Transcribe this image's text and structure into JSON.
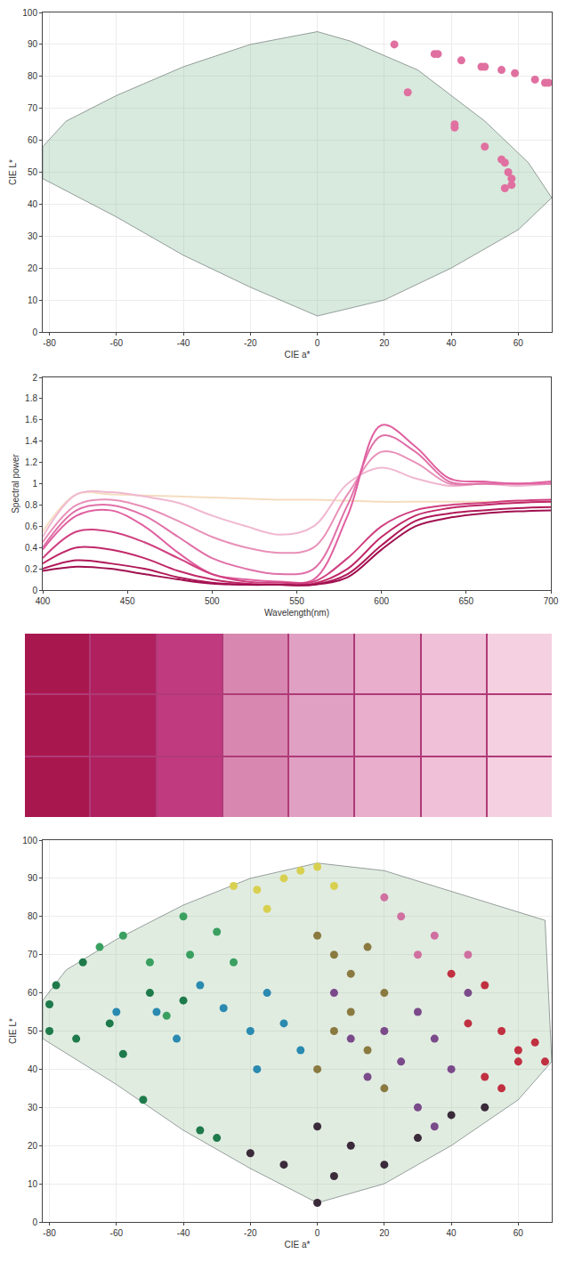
{
  "chart_data": [
    {
      "type": "scatter",
      "xlabel": "CIE a*",
      "ylabel": "CIE L*",
      "xlim": [
        -82,
        70
      ],
      "ylim": [
        0,
        100
      ],
      "xticks": [
        -80,
        -60,
        -40,
        -20,
        0,
        20,
        40,
        60
      ],
      "yticks": [
        0,
        10,
        20,
        30,
        40,
        50,
        60,
        70,
        80,
        90,
        100
      ],
      "grid": true,
      "series": [
        {
          "type": "area",
          "color": "#8fbf9f",
          "line_style": "solid",
          "x": [
            -82,
            -82,
            -75,
            -60,
            -40,
            -20,
            0,
            10,
            30,
            50,
            63,
            70,
            60,
            40,
            20,
            0,
            -20,
            -40,
            -60,
            -82
          ],
          "values": [
            48,
            58,
            66,
            74,
            83,
            90,
            94,
            91,
            82,
            66,
            53,
            42,
            32,
            20,
            10,
            5,
            14,
            24,
            36,
            48
          ]
        },
        {
          "type": "scatter",
          "color": "#e070a0",
          "marker": "circle",
          "x": [
            23,
            27,
            35,
            36,
            43,
            41,
            41,
            49,
            50,
            50,
            55,
            55,
            56,
            59,
            57,
            58,
            58,
            56,
            65,
            68,
            69
          ],
          "values": [
            90,
            75,
            87,
            87,
            85,
            65,
            64,
            83,
            83,
            58,
            82,
            54,
            53,
            81,
            50,
            48,
            46,
            45,
            79,
            78,
            78
          ]
        }
      ]
    },
    {
      "type": "line",
      "xlabel": "Wavelength(nm)",
      "ylabel": "Spectral power",
      "xlim": [
        400,
        700
      ],
      "ylim": [
        0,
        2
      ],
      "xticks": [
        400,
        450,
        500,
        550,
        600,
        650,
        700
      ],
      "yticks": [
        0,
        0.2,
        0.4,
        0.6,
        0.8,
        1,
        1.2,
        1.4,
        1.6,
        1.8,
        2
      ],
      "grid": false,
      "x": [
        400,
        420,
        440,
        460,
        480,
        500,
        520,
        540,
        560,
        580,
        600,
        620,
        640,
        660,
        680,
        700
      ],
      "series": [
        {
          "color": "#f5dcc0",
          "values": [
            0.55,
            0.9,
            0.9,
            0.89,
            0.88,
            0.87,
            0.86,
            0.85,
            0.85,
            0.84,
            0.83,
            0.83,
            0.83,
            0.83,
            0.83,
            0.83
          ]
        },
        {
          "color": "#f0b8d0",
          "values": [
            0.5,
            0.9,
            0.92,
            0.88,
            0.82,
            0.7,
            0.6,
            0.52,
            0.6,
            1.0,
            1.15,
            1.05,
            0.98,
            1.0,
            0.98,
            1.0
          ]
        },
        {
          "color": "#e890b8",
          "values": [
            0.45,
            0.8,
            0.85,
            0.78,
            0.65,
            0.5,
            0.4,
            0.35,
            0.4,
            0.9,
            1.3,
            1.2,
            1.0,
            1.0,
            1.0,
            1.0
          ]
        },
        {
          "color": "#e070a8",
          "values": [
            0.4,
            0.75,
            0.8,
            0.7,
            0.5,
            0.3,
            0.2,
            0.15,
            0.2,
            0.8,
            1.45,
            1.3,
            1.02,
            1.0,
            1.0,
            1.0
          ]
        },
        {
          "color": "#e060a0",
          "values": [
            0.38,
            0.7,
            0.75,
            0.6,
            0.35,
            0.15,
            0.1,
            0.08,
            0.1,
            0.7,
            1.55,
            1.35,
            1.05,
            1.02,
            1.0,
            1.02
          ]
        },
        {
          "color": "#d04080",
          "values": [
            0.3,
            0.55,
            0.55,
            0.45,
            0.3,
            0.15,
            0.08,
            0.07,
            0.08,
            0.3,
            0.6,
            0.75,
            0.8,
            0.82,
            0.84,
            0.85
          ]
        },
        {
          "color": "#c02868",
          "values": [
            0.25,
            0.4,
            0.38,
            0.3,
            0.18,
            0.1,
            0.06,
            0.05,
            0.06,
            0.2,
            0.5,
            0.7,
            0.77,
            0.8,
            0.82,
            0.83
          ]
        },
        {
          "color": "#b01858",
          "values": [
            0.2,
            0.28,
            0.25,
            0.2,
            0.12,
            0.07,
            0.05,
            0.05,
            0.05,
            0.15,
            0.42,
            0.65,
            0.72,
            0.75,
            0.77,
            0.78
          ]
        },
        {
          "color": "#a01050",
          "values": [
            0.18,
            0.22,
            0.2,
            0.15,
            0.1,
            0.06,
            0.05,
            0.05,
            0.05,
            0.12,
            0.38,
            0.6,
            0.68,
            0.72,
            0.74,
            0.75
          ]
        }
      ]
    },
    {
      "type": "patches",
      "rows": 3,
      "colors": [
        "#a8184e",
        "#b0205e",
        "#c03a80",
        "#d888b0",
        "#e0a0c4",
        "#e8aecc",
        "#f0c0d8",
        "#f5d0e0"
      ]
    },
    {
      "type": "scatter",
      "xlabel": "CIE a*",
      "ylabel": "CIE L*",
      "xlim": [
        -82,
        70
      ],
      "ylim": [
        0,
        100
      ],
      "xticks": [
        -80,
        -60,
        -40,
        -20,
        0,
        20,
        40,
        60
      ],
      "yticks": [
        0,
        10,
        20,
        30,
        40,
        50,
        60,
        70,
        80,
        90,
        100
      ],
      "grid": true,
      "series": [
        {
          "type": "area",
          "color": "#a9c9a9",
          "line_style": "solid",
          "x": [
            -82,
            -82,
            -75,
            -60,
            -40,
            -20,
            0,
            20,
            68,
            70,
            60,
            40,
            20,
            0,
            -20,
            -40,
            -60,
            -82
          ],
          "values": [
            48,
            58,
            66,
            74,
            83,
            90,
            94,
            92,
            79,
            42,
            32,
            20,
            10,
            5,
            14,
            24,
            36,
            48
          ]
        },
        {
          "type": "scatter",
          "color": "#1e7a4a",
          "marker": "circle",
          "x": [
            -80,
            -80,
            -78,
            -72,
            -70,
            -62,
            -58,
            -52,
            -50,
            -40,
            -35,
            -30
          ],
          "values": [
            57,
            50,
            62,
            48,
            68,
            52,
            44,
            32,
            60,
            58,
            24,
            22
          ]
        },
        {
          "type": "scatter",
          "color": "#3aa060",
          "marker": "circle",
          "x": [
            -65,
            -58,
            -50,
            -45,
            -40,
            -38,
            -30,
            -25
          ],
          "values": [
            72,
            75,
            68,
            54,
            80,
            70,
            76,
            68
          ]
        },
        {
          "type": "scatter",
          "color": "#2a8ab0",
          "marker": "circle",
          "x": [
            -60,
            -48,
            -42,
            -35,
            -28,
            -20,
            -15,
            -10,
            -18,
            -5
          ],
          "values": [
            55,
            55,
            48,
            62,
            56,
            50,
            60,
            52,
            40,
            45
          ]
        },
        {
          "type": "scatter",
          "color": "#d8d050",
          "marker": "circle",
          "x": [
            -25,
            -18,
            -10,
            -5,
            0,
            5,
            -15
          ],
          "values": [
            88,
            87,
            90,
            92,
            93,
            88,
            82
          ]
        },
        {
          "type": "scatter",
          "color": "#8a7a40",
          "marker": "circle",
          "x": [
            0,
            5,
            10,
            15,
            20,
            10,
            5,
            0,
            15,
            20
          ],
          "values": [
            75,
            70,
            65,
            72,
            60,
            55,
            50,
            40,
            45,
            35
          ]
        },
        {
          "type": "scatter",
          "color": "#7a4a8a",
          "marker": "circle",
          "x": [
            5,
            10,
            15,
            20,
            25,
            30,
            35,
            40,
            45,
            30,
            35
          ],
          "values": [
            60,
            48,
            38,
            50,
            42,
            55,
            48,
            40,
            60,
            30,
            25
          ]
        },
        {
          "type": "scatter",
          "color": "#c03040",
          "marker": "circle",
          "x": [
            45,
            55,
            60,
            65,
            68,
            50,
            55,
            60,
            40,
            50
          ],
          "values": [
            52,
            50,
            45,
            47,
            42,
            38,
            35,
            42,
            65,
            62
          ]
        },
        {
          "type": "scatter",
          "color": "#d070a0",
          "marker": "circle",
          "x": [
            25,
            35,
            45,
            20,
            30
          ],
          "values": [
            80,
            75,
            70,
            85,
            70
          ]
        },
        {
          "type": "scatter",
          "color": "#3a2a3a",
          "marker": "circle",
          "x": [
            -10,
            0,
            5,
            10,
            20,
            30,
            40,
            50,
            -20,
            0
          ],
          "values": [
            15,
            5,
            12,
            20,
            15,
            22,
            28,
            30,
            18,
            25
          ]
        }
      ]
    }
  ]
}
